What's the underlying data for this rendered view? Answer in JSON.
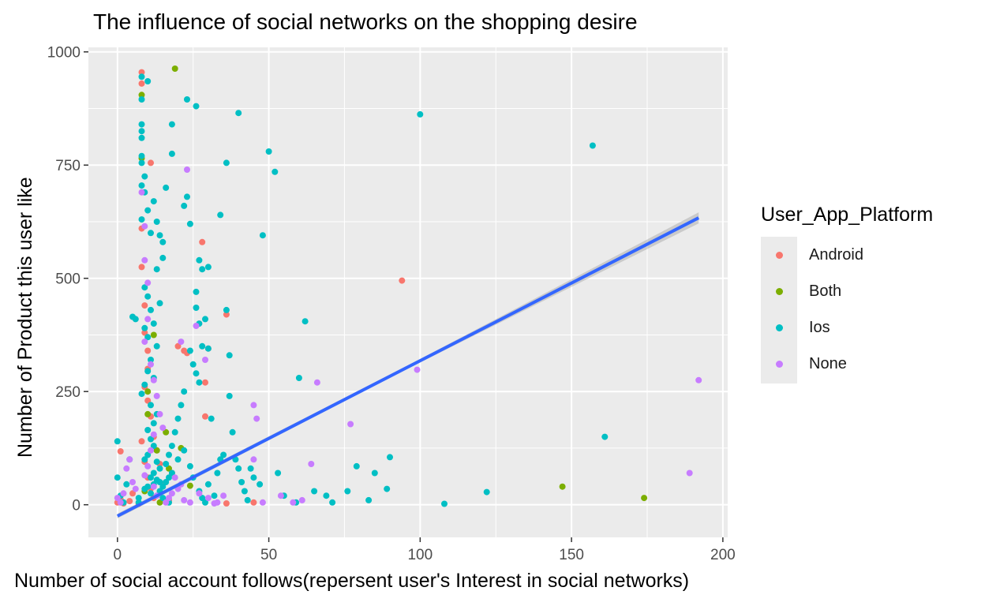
{
  "chart_data": {
    "type": "scatter",
    "title": "The influence of social networks on the shopping desire",
    "xlabel": "Number of social account follows(repersent user's Interest in social networks)",
    "ylabel": "Number of Product this user like",
    "xlim": [
      -9.6,
      201.6
    ],
    "ylim": [
      -72,
      1010
    ],
    "x_ticks": [
      0,
      50,
      100,
      150,
      200
    ],
    "y_ticks": [
      0,
      250,
      500,
      750,
      1000
    ],
    "grid": true,
    "legend": {
      "title": "User_App_Platform",
      "position": "right",
      "entries": [
        {
          "name": "Android",
          "color": "#F8766D"
        },
        {
          "name": "Both",
          "color": "#7CAE00"
        },
        {
          "name": "Ios",
          "color": "#00BFC4"
        },
        {
          "name": "None",
          "color": "#C77CFF"
        }
      ]
    },
    "series": [
      {
        "name": "Android",
        "color": "#F8766D",
        "points": [
          [
            1,
            118
          ],
          [
            0,
            5
          ],
          [
            1,
            12
          ],
          [
            2,
            3
          ],
          [
            4,
            8
          ],
          [
            5,
            25
          ],
          [
            7,
            2
          ],
          [
            8,
            955
          ],
          [
            8,
            930
          ],
          [
            11,
            755
          ],
          [
            8,
            610
          ],
          [
            8,
            525
          ],
          [
            9,
            440
          ],
          [
            9,
            380
          ],
          [
            10,
            340
          ],
          [
            10,
            300
          ],
          [
            9,
            260
          ],
          [
            10,
            230
          ],
          [
            11,
            195
          ],
          [
            12,
            150
          ],
          [
            13,
            120
          ],
          [
            9,
            95
          ],
          [
            10,
            60
          ],
          [
            11,
            35
          ],
          [
            12,
            15
          ],
          [
            8,
            140
          ],
          [
            14,
            90
          ],
          [
            15,
            45
          ],
          [
            17,
            10
          ],
          [
            18,
            70
          ],
          [
            20,
            350
          ],
          [
            22,
            340
          ],
          [
            23,
            335
          ],
          [
            28,
            580
          ],
          [
            29,
            270
          ],
          [
            29,
            195
          ],
          [
            30,
            345
          ],
          [
            36,
            420
          ],
          [
            36,
            3
          ],
          [
            45,
            5
          ],
          [
            94,
            495
          ]
        ]
      },
      {
        "name": "Both",
        "color": "#7CAE00",
        "points": [
          [
            19,
            963
          ],
          [
            8,
            905
          ],
          [
            8,
            765
          ],
          [
            12,
            375
          ],
          [
            10,
            250
          ],
          [
            10,
            200
          ],
          [
            13,
            120
          ],
          [
            16,
            160
          ],
          [
            17,
            80
          ],
          [
            21,
            125
          ],
          [
            24,
            42
          ],
          [
            9,
            30
          ],
          [
            14,
            5
          ],
          [
            147,
            40
          ],
          [
            174,
            15
          ]
        ]
      },
      {
        "name": "Ios",
        "color": "#00BFC4",
        "points": [
          [
            0,
            140
          ],
          [
            0,
            60
          ],
          [
            1,
            20
          ],
          [
            2,
            5
          ],
          [
            3,
            45
          ],
          [
            4,
            100
          ],
          [
            5,
            415
          ],
          [
            6,
            410
          ],
          [
            7,
            5
          ],
          [
            7,
            15
          ],
          [
            8,
            945
          ],
          [
            10,
            935
          ],
          [
            8,
            895
          ],
          [
            8,
            840
          ],
          [
            8,
            825
          ],
          [
            8,
            810
          ],
          [
            8,
            770
          ],
          [
            8,
            755
          ],
          [
            9,
            725
          ],
          [
            8,
            705
          ],
          [
            9,
            690
          ],
          [
            10,
            650
          ],
          [
            8,
            630
          ],
          [
            12,
            670
          ],
          [
            13,
            625
          ],
          [
            11,
            600
          ],
          [
            14,
            595
          ],
          [
            15,
            545
          ],
          [
            13,
            520
          ],
          [
            9,
            480
          ],
          [
            10,
            460
          ],
          [
            14,
            445
          ],
          [
            11,
            430
          ],
          [
            12,
            400
          ],
          [
            9,
            390
          ],
          [
            10,
            370
          ],
          [
            13,
            350
          ],
          [
            11,
            320
          ],
          [
            10,
            295
          ],
          [
            12,
            280
          ],
          [
            9,
            265
          ],
          [
            8,
            245
          ],
          [
            11,
            220
          ],
          [
            13,
            200
          ],
          [
            12,
            180
          ],
          [
            10,
            165
          ],
          [
            11,
            145
          ],
          [
            12,
            130
          ],
          [
            10,
            110
          ],
          [
            9,
            100
          ],
          [
            13,
            95
          ],
          [
            14,
            80
          ],
          [
            12,
            70
          ],
          [
            11,
            60
          ],
          [
            13,
            55
          ],
          [
            14,
            50
          ],
          [
            12,
            45
          ],
          [
            10,
            40
          ],
          [
            9,
            35
          ],
          [
            11,
            25
          ],
          [
            13,
            20
          ],
          [
            15,
            15
          ],
          [
            16,
            10
          ],
          [
            17,
            5
          ],
          [
            14,
            30
          ],
          [
            15,
            40
          ],
          [
            16,
            50
          ],
          [
            17,
            60
          ],
          [
            18,
            70
          ],
          [
            16,
            90
          ],
          [
            17,
            110
          ],
          [
            18,
            130
          ],
          [
            19,
            160
          ],
          [
            20,
            190
          ],
          [
            21,
            220
          ],
          [
            22,
            250
          ],
          [
            15,
            580
          ],
          [
            16,
            700
          ],
          [
            18,
            775
          ],
          [
            18,
            840
          ],
          [
            22,
            660
          ],
          [
            23,
            680
          ],
          [
            24,
            620
          ],
          [
            26,
            470
          ],
          [
            27,
            540
          ],
          [
            28,
            520
          ],
          [
            26,
            435
          ],
          [
            27,
            400
          ],
          [
            24,
            340
          ],
          [
            25,
            310
          ],
          [
            26,
            290
          ],
          [
            27,
            270
          ],
          [
            28,
            350
          ],
          [
            29,
            410
          ],
          [
            30,
            525
          ],
          [
            30,
            345
          ],
          [
            31,
            190
          ],
          [
            23,
            895
          ],
          [
            26,
            880
          ],
          [
            34,
            640
          ],
          [
            36,
            755
          ],
          [
            36,
            430
          ],
          [
            37,
            240
          ],
          [
            37,
            330
          ],
          [
            38,
            160
          ],
          [
            40,
            865
          ],
          [
            39,
            100
          ],
          [
            40,
            80
          ],
          [
            41,
            50
          ],
          [
            42,
            30
          ],
          [
            43,
            10
          ],
          [
            44,
            80
          ],
          [
            45,
            60
          ],
          [
            47,
            45
          ],
          [
            48,
            595
          ],
          [
            50,
            780
          ],
          [
            52,
            735
          ],
          [
            53,
            70
          ],
          [
            55,
            20
          ],
          [
            59,
            5
          ],
          [
            60,
            280
          ],
          [
            62,
            405
          ],
          [
            65,
            30
          ],
          [
            69,
            20
          ],
          [
            71,
            5
          ],
          [
            76,
            30
          ],
          [
            79,
            85
          ],
          [
            83,
            10
          ],
          [
            85,
            70
          ],
          [
            89,
            35
          ],
          [
            90,
            105
          ],
          [
            100,
            862
          ],
          [
            108,
            2
          ],
          [
            122,
            28
          ],
          [
            157,
            793
          ],
          [
            161,
            150
          ],
          [
            20,
            100
          ],
          [
            22,
            120
          ],
          [
            24,
            85
          ],
          [
            25,
            60
          ],
          [
            27,
            30
          ],
          [
            28,
            15
          ],
          [
            29,
            5
          ],
          [
            30,
            45
          ],
          [
            32,
            20
          ],
          [
            33,
            70
          ],
          [
            34,
            100
          ],
          [
            35,
            110
          ]
        ]
      },
      {
        "name": "None",
        "color": "#C77CFF",
        "points": [
          [
            0,
            15
          ],
          [
            1,
            5
          ],
          [
            2,
            25
          ],
          [
            3,
            80
          ],
          [
            4,
            100
          ],
          [
            5,
            50
          ],
          [
            6,
            35
          ],
          [
            8,
            690
          ],
          [
            9,
            615
          ],
          [
            9,
            540
          ],
          [
            10,
            490
          ],
          [
            10,
            410
          ],
          [
            9,
            360
          ],
          [
            11,
            310
          ],
          [
            12,
            275
          ],
          [
            13,
            240
          ],
          [
            14,
            200
          ],
          [
            15,
            170
          ],
          [
            12,
            155
          ],
          [
            11,
            120
          ],
          [
            10,
            85
          ],
          [
            9,
            65
          ],
          [
            12,
            40
          ],
          [
            13,
            20
          ],
          [
            16,
            5
          ],
          [
            17,
            15
          ],
          [
            18,
            25
          ],
          [
            20,
            35
          ],
          [
            21,
            360
          ],
          [
            23,
            740
          ],
          [
            26,
            395
          ],
          [
            29,
            320
          ],
          [
            32,
            3
          ],
          [
            33,
            5
          ],
          [
            35,
            20
          ],
          [
            45,
            220
          ],
          [
            46,
            190
          ],
          [
            45,
            100
          ],
          [
            48,
            5
          ],
          [
            54,
            20
          ],
          [
            58,
            5
          ],
          [
            61,
            10
          ],
          [
            64,
            90
          ],
          [
            66,
            270
          ],
          [
            77,
            178
          ],
          [
            99,
            298
          ],
          [
            189,
            70
          ],
          [
            192,
            275
          ],
          [
            19,
            60
          ],
          [
            21,
            45
          ],
          [
            22,
            10
          ],
          [
            24,
            5
          ],
          [
            27,
            25
          ],
          [
            30,
            15
          ]
        ]
      }
    ],
    "trendline": {
      "method": "linear",
      "x_range": [
        0,
        192
      ],
      "intercept": -25,
      "slope": 3.43,
      "color": "#3366FF",
      "confidence_band": true
    }
  }
}
